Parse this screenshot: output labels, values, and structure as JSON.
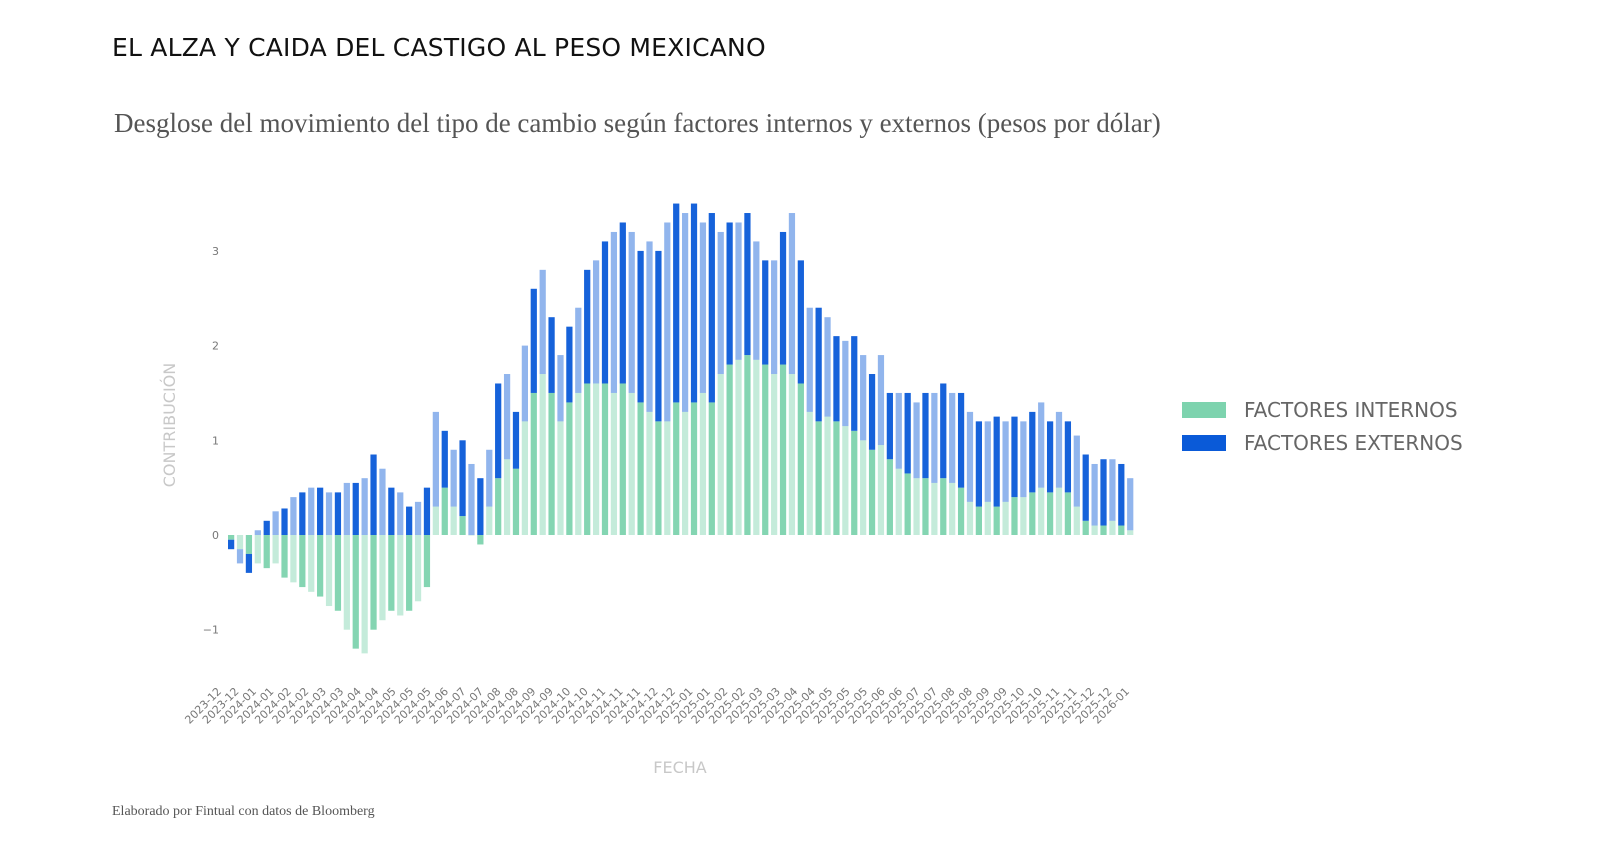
{
  "title": "EL ALZA Y CAIDA DEL CASTIGO AL PESO MEXICANO",
  "subtitle": "Desglose del movimiento del tipo de cambio según factores internos y externos (pesos por dólar)",
  "footer": "Elaborado por Fintual con datos de Bloomberg",
  "chart_data": {
    "type": "bar",
    "stacked": true,
    "xlabel": "FECHA",
    "ylabel": "CONTRIBUCIÓN",
    "ylim": [
      -1.4,
      3.7
    ],
    "yticks": [
      -1,
      0,
      1,
      2,
      3
    ],
    "grid": false,
    "legend_position": "right",
    "xtick_labels": [
      "2023-12",
      "2023-12",
      "2024-01",
      "2024-01",
      "2024-02",
      "2024-02",
      "2024-03",
      "2024-03",
      "2024-04",
      "2024-04",
      "2024-05",
      "2024-05",
      "2024-05",
      "2024-06",
      "2024-07",
      "2024-07",
      "2024-08",
      "2024-08",
      "2024-09",
      "2024-09",
      "2024-10",
      "2024-10",
      "2024-11",
      "2024-11",
      "2024-11",
      "2024-12",
      "2024-12",
      "2025-01",
      "2025-01",
      "2025-02",
      "2025-02",
      "2025-03",
      "2025-03",
      "2025-04",
      "2025-04",
      "2025-05",
      "2025-05",
      "2025-05",
      "2025-06",
      "2025-06",
      "2025-07",
      "2025-07",
      "2025-08",
      "2025-08",
      "2025-09",
      "2025-09",
      "2025-10",
      "2025-10",
      "2025-11",
      "2025-11",
      "2025-12",
      "2025-12",
      "2026-01"
    ],
    "series": [
      {
        "name": "FACTORES INTERNOS",
        "color": "#7dd3ae",
        "values": [
          -0.05,
          -0.15,
          -0.2,
          -0.3,
          -0.35,
          -0.3,
          -0.45,
          -0.5,
          -0.55,
          -0.6,
          -0.65,
          -0.75,
          -0.8,
          -1.0,
          -1.2,
          -1.25,
          -1.0,
          -0.9,
          -0.8,
          -0.85,
          -0.8,
          -0.7,
          -0.55,
          0.3,
          0.5,
          0.3,
          0.2,
          0.0,
          -0.1,
          0.3,
          0.6,
          0.8,
          0.7,
          1.2,
          1.5,
          1.7,
          1.5,
          1.2,
          1.4,
          1.5,
          1.6,
          1.6,
          1.6,
          1.5,
          1.6,
          1.5,
          1.4,
          1.3,
          1.2,
          1.2,
          1.4,
          1.3,
          1.4,
          1.5,
          1.4,
          1.7,
          1.8,
          1.85,
          1.9,
          1.85,
          1.8,
          1.7,
          1.8,
          1.7,
          1.6,
          1.3,
          1.2,
          1.25,
          1.2,
          1.15,
          1.1,
          1.0,
          0.9,
          0.95,
          0.8,
          0.7,
          0.65,
          0.6,
          0.6,
          0.55,
          0.6,
          0.55,
          0.5,
          0.35,
          0.3,
          0.35,
          0.3,
          0.35,
          0.4,
          0.4,
          0.45,
          0.5,
          0.45,
          0.5,
          0.45,
          0.3,
          0.15,
          0.1,
          0.1,
          0.15,
          0.1,
          0.05
        ]
      },
      {
        "name": "FACTORES EXTERNOS",
        "color": "#0a5ad8",
        "values": [
          -0.1,
          -0.15,
          -0.2,
          0.05,
          0.15,
          0.25,
          0.28,
          0.4,
          0.45,
          0.5,
          0.5,
          0.45,
          0.45,
          0.55,
          0.55,
          0.6,
          0.85,
          0.7,
          0.5,
          0.45,
          0.3,
          0.35,
          0.5,
          1.0,
          0.6,
          0.6,
          0.8,
          0.75,
          0.6,
          0.6,
          1.0,
          0.9,
          0.6,
          0.8,
          1.1,
          1.1,
          0.8,
          0.7,
          0.8,
          0.9,
          1.2,
          1.3,
          1.5,
          1.7,
          1.7,
          1.7,
          1.6,
          1.8,
          1.8,
          2.1,
          2.1,
          2.1,
          2.1,
          1.8,
          2.0,
          1.5,
          1.5,
          1.45,
          1.5,
          1.25,
          1.1,
          1.2,
          1.4,
          1.7,
          1.3,
          1.1,
          1.2,
          1.05,
          0.9,
          0.9,
          1.0,
          0.9,
          0.8,
          0.95,
          0.7,
          0.8,
          0.85,
          0.8,
          0.9,
          0.95,
          1.0,
          0.95,
          1.0,
          0.95,
          0.9,
          0.85,
          0.95,
          0.85,
          0.85,
          0.8,
          0.85,
          0.9,
          0.75,
          0.8,
          0.75,
          0.75,
          0.7,
          0.65,
          0.7,
          0.65,
          0.65,
          0.55
        ]
      }
    ]
  }
}
